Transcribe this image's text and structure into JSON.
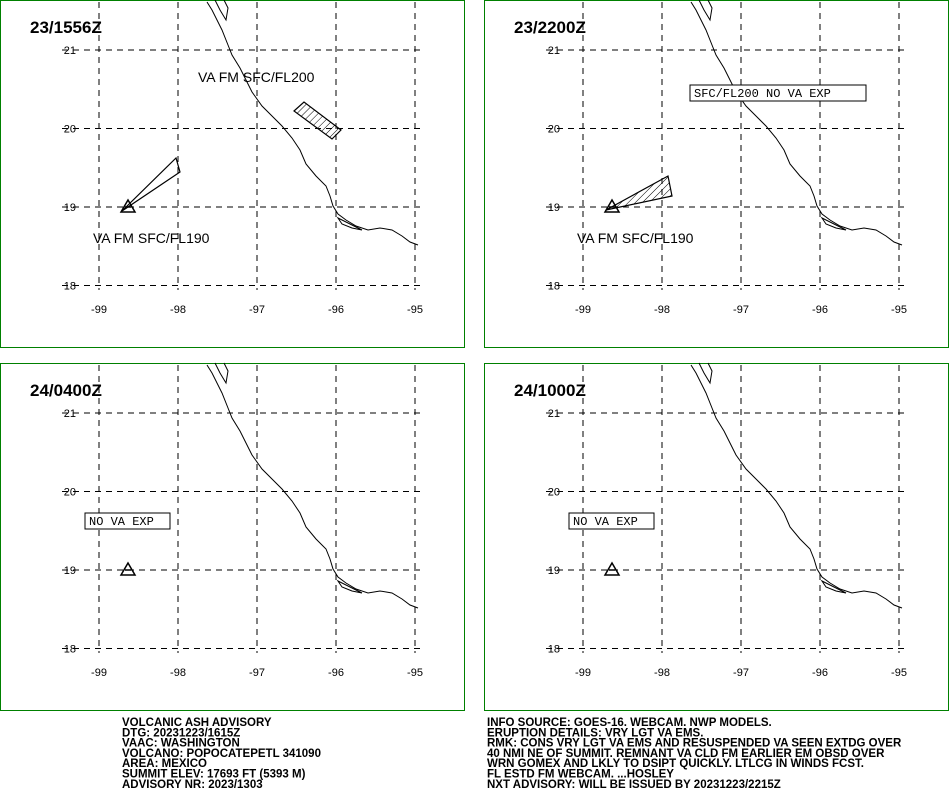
{
  "panels": [
    {
      "time": "23/1556Z",
      "annotations": [
        "VA FM SFC/FL200",
        "VA FM SFC/FL190"
      ]
    },
    {
      "time": "23/2200Z",
      "annotations": [
        "SFC/FL200 NO VA EXP",
        "VA FM SFC/FL190"
      ]
    },
    {
      "time": "24/0400Z",
      "annotations": [
        "NO VA EXP"
      ]
    },
    {
      "time": "24/1000Z",
      "annotations": [
        "NO VA EXP"
      ]
    }
  ],
  "lon_ticks": [
    -99,
    -98,
    -97,
    -96,
    -95
  ],
  "lat_ticks": [
    21,
    20,
    19,
    18
  ],
  "advisory_left": [
    "VOLCANIC ASH ADVISORY",
    "DTG: 20231223/1615Z",
    "VAAC: WASHINGTON",
    "VOLCANO: POPOCATEPETL 341090",
    "AREA: MEXICO",
    "SUMMIT ELEV: 17693 FT (5393 M)",
    "ADVISORY NR: 2023/1303"
  ],
  "advisory_right": [
    "INFO SOURCE: GOES-16. WEBCAM. NWP MODELS.",
    "ERUPTION DETAILS: VRY LGT VA EMS.",
    "RMK: CONS VRY LGT VA EMS AND RESUSPENDED VA SEEN EXTDG OVER",
    "40 NMI NE OF SUMMIT. REMNANT VA CLD FM EARLIER EM OBSD OVER",
    "WRN GOMEX AND LKLY TO DSIPT QUICKLY. LTLCG IN WINDS FCST.",
    "FL ESTD FM WEBCAM. ...HOSLEY",
    "NXT ADVISORY: WILL BE ISSUED BY 20231223/2215Z"
  ]
}
